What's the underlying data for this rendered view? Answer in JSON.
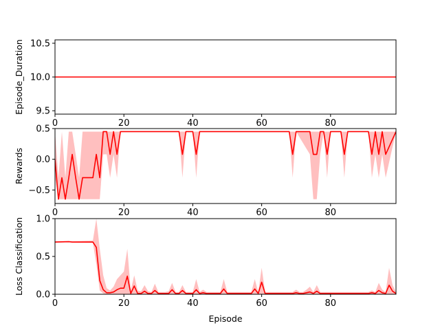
{
  "chart_data": [
    {
      "type": "line",
      "ylabel": "Episode_Duration",
      "xlim": [
        0,
        99
      ],
      "ylim": [
        9.45,
        10.55
      ],
      "xticks": [
        "0",
        "20",
        "40",
        "60",
        "80"
      ],
      "yticks": [
        "9.5",
        "10.0",
        "10.5"
      ],
      "series": [
        {
          "color": "#ff0000",
          "mean": {
            "x": [
              0,
              99
            ],
            "y": [
              10.0,
              10.0
            ]
          },
          "band": {
            "x": [
              0,
              99
            ],
            "lower": [
              10.0,
              10.0
            ],
            "upper": [
              10.0,
              10.0
            ]
          }
        }
      ]
    },
    {
      "type": "line",
      "ylabel": "Rewards",
      "xlim": [
        0,
        99
      ],
      "ylim": [
        -0.72,
        0.5
      ],
      "xticks": [
        "0",
        "20",
        "40",
        "60",
        "80"
      ],
      "yticks": [
        "-0.5",
        "0.0",
        "0.5"
      ],
      "series": [
        {
          "color": "#ff0000",
          "mean": {
            "x": [
              0,
              1,
              2,
              3,
              4,
              5,
              6,
              7,
              8,
              9,
              10,
              11,
              12,
              13,
              14,
              15,
              16,
              17,
              18,
              19,
              20,
              36,
              37,
              38,
              40,
              41,
              42,
              68,
              69,
              70,
              74,
              75,
              76,
              77,
              78,
              79,
              80,
              83,
              84,
              85,
              91,
              92,
              93,
              94,
              95,
              96,
              99
            ],
            "y": [
              0.0,
              -0.65,
              -0.3,
              -0.65,
              -0.3,
              0.08,
              -0.3,
              -0.65,
              -0.3,
              -0.3,
              -0.3,
              -0.3,
              0.08,
              -0.3,
              0.45,
              0.45,
              0.08,
              0.45,
              0.08,
              0.45,
              0.45,
              0.45,
              0.08,
              0.45,
              0.45,
              0.08,
              0.45,
              0.45,
              0.08,
              0.45,
              0.45,
              0.08,
              0.08,
              0.45,
              0.45,
              0.08,
              0.45,
              0.45,
              0.08,
              0.45,
              0.45,
              0.08,
              0.45,
              0.08,
              0.45,
              0.08,
              0.45
            ]
          },
          "band": {
            "x": [
              0,
              1,
              2,
              3,
              4,
              5,
              6,
              7,
              8,
              9,
              10,
              11,
              12,
              13,
              14,
              15,
              16,
              17,
              18,
              19,
              20,
              36,
              37,
              38,
              40,
              41,
              42,
              68,
              69,
              70,
              74,
              75,
              76,
              77,
              78,
              79,
              80,
              83,
              84,
              85,
              91,
              92,
              93,
              94,
              95,
              96,
              99
            ],
            "lower": [
              -0.3,
              -0.65,
              -0.65,
              -0.65,
              -0.65,
              -0.65,
              -0.65,
              -0.65,
              -0.65,
              -0.65,
              -0.65,
              -0.65,
              -0.65,
              -0.65,
              0.08,
              0.08,
              -0.3,
              0.08,
              -0.3,
              0.45,
              0.45,
              0.45,
              -0.3,
              0.45,
              0.45,
              -0.3,
              0.45,
              0.45,
              -0.3,
              0.45,
              0.08,
              -0.65,
              -0.65,
              0.08,
              0.45,
              -0.3,
              0.45,
              0.45,
              -0.3,
              0.45,
              0.45,
              -0.3,
              0.08,
              -0.3,
              0.08,
              -0.3,
              0.45
            ],
            "upper": [
              0.45,
              -0.3,
              0.45,
              -0.3,
              0.45,
              0.45,
              0.08,
              -0.3,
              0.45,
              0.45,
              0.45,
              0.45,
              0.45,
              0.45,
              0.45,
              0.45,
              0.45,
              0.45,
              0.45,
              0.45,
              0.45,
              0.45,
              0.45,
              0.45,
              0.45,
              0.45,
              0.45,
              0.45,
              0.45,
              0.45,
              0.45,
              0.45,
              0.45,
              0.45,
              0.45,
              0.45,
              0.45,
              0.45,
              0.45,
              0.45,
              0.45,
              0.45,
              0.45,
              0.45,
              0.45,
              0.45,
              0.45
            ]
          }
        }
      ]
    },
    {
      "type": "line",
      "xlabel": "Episode",
      "ylabel": "Loss Classification",
      "xlim": [
        0,
        99
      ],
      "ylim": [
        0,
        1.0
      ],
      "xticks": [
        "0",
        "20",
        "40",
        "60",
        "80"
      ],
      "yticks": [
        "0.0",
        "0.5",
        "1.0"
      ],
      "series": [
        {
          "color": "#ff0000",
          "mean": {
            "x": [
              0,
              4,
              5,
              11,
              12,
              13,
              14,
              15,
              16,
              17,
              18,
              19,
              20,
              21,
              22,
              23,
              24,
              25,
              26,
              27,
              28,
              29,
              30,
              31,
              32,
              33,
              34,
              35,
              36,
              37,
              38,
              39,
              40,
              41,
              42,
              43,
              44,
              45,
              46,
              47,
              48,
              49,
              50,
              51,
              52,
              53,
              54,
              55,
              56,
              57,
              58,
              59,
              60,
              61,
              62,
              63,
              64,
              65,
              66,
              67,
              68,
              69,
              70,
              71,
              72,
              73,
              74,
              75,
              76,
              77,
              78,
              79,
              80,
              81,
              82,
              83,
              84,
              85,
              86,
              87,
              88,
              89,
              90,
              91,
              92,
              93,
              94,
              95,
              96,
              97,
              98,
              99
            ],
            "y": [
              0.69,
              0.695,
              0.69,
              0.69,
              0.62,
              0.18,
              0.06,
              0.02,
              0.02,
              0.03,
              0.06,
              0.08,
              0.08,
              0.24,
              0.01,
              0.11,
              0.01,
              0.01,
              0.04,
              0.01,
              0.01,
              0.05,
              0.01,
              0.01,
              0.01,
              0.01,
              0.06,
              0.01,
              0.01,
              0.05,
              0.01,
              0.01,
              0.01,
              0.06,
              0.01,
              0.02,
              0.01,
              0.01,
              0.01,
              0.01,
              0.01,
              0.07,
              0.01,
              0.01,
              0.01,
              0.01,
              0.01,
              0.01,
              0.01,
              0.01,
              0.07,
              0.01,
              0.16,
              0.01,
              0.01,
              0.01,
              0.01,
              0.01,
              0.01,
              0.01,
              0.01,
              0.01,
              0.02,
              0.01,
              0.01,
              0.02,
              0.03,
              0.01,
              0.04,
              0.01,
              0.01,
              0.01,
              0.01,
              0.01,
              0.01,
              0.01,
              0.01,
              0.01,
              0.01,
              0.01,
              0.01,
              0.01,
              0.01,
              0.01,
              0.02,
              0.01,
              0.05,
              0.02,
              0.01,
              0.12,
              0.04,
              0.01
            ]
          },
          "band": {
            "x": [
              0,
              4,
              5,
              11,
              12,
              13,
              14,
              15,
              16,
              17,
              18,
              19,
              20,
              21,
              22,
              23,
              24,
              25,
              26,
              27,
              28,
              29,
              30,
              31,
              32,
              33,
              34,
              35,
              36,
              37,
              38,
              39,
              40,
              41,
              42,
              43,
              44,
              45,
              46,
              47,
              48,
              49,
              50,
              51,
              52,
              53,
              54,
              55,
              56,
              57,
              58,
              59,
              60,
              61,
              62,
              63,
              64,
              65,
              66,
              67,
              68,
              69,
              70,
              71,
              72,
              73,
              74,
              75,
              76,
              77,
              78,
              79,
              80,
              81,
              82,
              83,
              84,
              85,
              86,
              87,
              88,
              89,
              90,
              91,
              92,
              93,
              94,
              95,
              96,
              97,
              98,
              99
            ],
            "lower": [
              0.685,
              0.69,
              0.685,
              0.68,
              0.4,
              0.05,
              0.01,
              0.0,
              0.0,
              0.0,
              0.0,
              0.0,
              0.0,
              0.0,
              0.0,
              0.0,
              0.0,
              0.0,
              0.0,
              0.0,
              0.0,
              0.0,
              0.0,
              0.0,
              0.0,
              0.0,
              0.0,
              0.0,
              0.0,
              0.0,
              0.0,
              0.0,
              0.0,
              0.0,
              0.0,
              0.0,
              0.0,
              0.0,
              0.0,
              0.0,
              0.0,
              0.0,
              0.0,
              0.0,
              0.0,
              0.0,
              0.0,
              0.0,
              0.0,
              0.0,
              0.0,
              0.0,
              0.0,
              0.0,
              0.0,
              0.0,
              0.0,
              0.0,
              0.0,
              0.0,
              0.0,
              0.0,
              0.0,
              0.0,
              0.0,
              0.0,
              0.0,
              0.0,
              0.0,
              0.0,
              0.0,
              0.0,
              0.0,
              0.0,
              0.0,
              0.0,
              0.0,
              0.0,
              0.0,
              0.0,
              0.0,
              0.0,
              0.0,
              0.0,
              0.0,
              0.0,
              0.0,
              0.0,
              0.0,
              0.0,
              0.0,
              0.0
            ],
            "upper": [
              0.7,
              0.705,
              0.7,
              0.71,
              1.0,
              0.6,
              0.25,
              0.08,
              0.05,
              0.1,
              0.2,
              0.25,
              0.3,
              0.6,
              0.05,
              0.25,
              0.05,
              0.04,
              0.12,
              0.04,
              0.03,
              0.14,
              0.03,
              0.03,
              0.03,
              0.04,
              0.15,
              0.03,
              0.03,
              0.12,
              0.03,
              0.03,
              0.03,
              0.2,
              0.03,
              0.06,
              0.03,
              0.03,
              0.03,
              0.03,
              0.03,
              0.2,
              0.03,
              0.03,
              0.03,
              0.03,
              0.03,
              0.03,
              0.03,
              0.03,
              0.2,
              0.03,
              0.35,
              0.03,
              0.03,
              0.03,
              0.03,
              0.03,
              0.03,
              0.03,
              0.03,
              0.03,
              0.06,
              0.03,
              0.03,
              0.06,
              0.1,
              0.03,
              0.12,
              0.03,
              0.03,
              0.03,
              0.03,
              0.03,
              0.03,
              0.03,
              0.03,
              0.03,
              0.03,
              0.03,
              0.03,
              0.03,
              0.03,
              0.03,
              0.05,
              0.03,
              0.15,
              0.06,
              0.03,
              0.35,
              0.12,
              0.03
            ]
          }
        }
      ]
    }
  ]
}
